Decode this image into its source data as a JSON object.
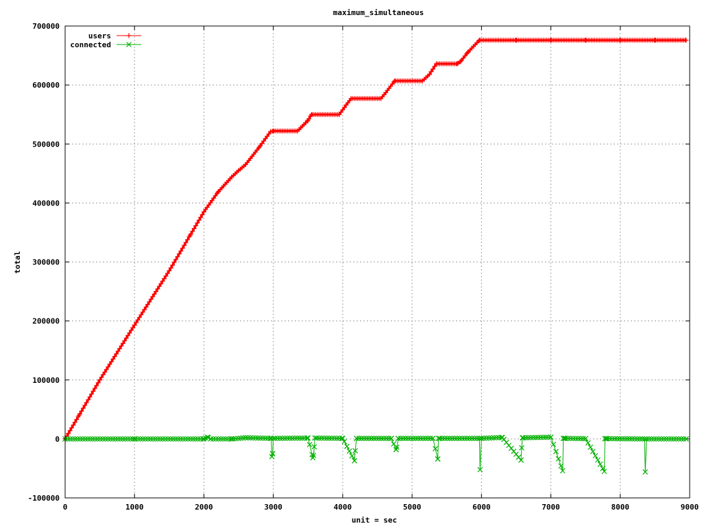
{
  "chart_data": {
    "type": "line",
    "title": "maximum_simultaneous",
    "xlabel": "unit = sec",
    "ylabel": "total",
    "xlim": [
      0,
      9000
    ],
    "ylim": [
      -100000,
      700000
    ],
    "x_ticks": [
      0,
      1000,
      2000,
      3000,
      4000,
      5000,
      6000,
      7000,
      8000,
      9000
    ],
    "y_ticks": [
      -100000,
      0,
      100000,
      200000,
      300000,
      400000,
      500000,
      600000,
      700000
    ],
    "grid": true,
    "legend_position": "top-left",
    "series": [
      {
        "name": "users",
        "color": "#ff0000",
        "marker": "plus",
        "x": [
          0,
          200,
          500,
          1000,
          1500,
          1800,
          2000,
          2200,
          2400,
          2500,
          2600,
          2800,
          2960,
          3000,
          3350,
          3500,
          3550,
          3950,
          4050,
          4120,
          4550,
          4620,
          4750,
          5150,
          5250,
          5350,
          5650,
          5700,
          5800,
          5970,
          6500,
          7000,
          7500,
          8000,
          8500,
          8950
        ],
        "y": [
          0,
          40000,
          100000,
          193000,
          285000,
          345000,
          385000,
          418000,
          444000,
          455000,
          465000,
          495000,
          521000,
          522000,
          522000,
          540000,
          550000,
          550000,
          566000,
          577000,
          577000,
          587000,
          607000,
          607000,
          618000,
          636000,
          636000,
          640000,
          655000,
          676000,
          676000,
          676000,
          676000,
          676000,
          676000,
          676000
        ]
      },
      {
        "name": "connected",
        "color": "#00b000",
        "marker": "cross",
        "x": [
          0,
          1000,
          2000,
          2050,
          2100,
          2400,
          2600,
          2970,
          2980,
          2990,
          3000,
          3500,
          3570,
          3580,
          3600,
          4000,
          4170,
          4180,
          4200,
          4700,
          4770,
          4780,
          4800,
          5300,
          5370,
          5380,
          5400,
          5970,
          5980,
          6000,
          6300,
          6570,
          6580,
          6590,
          6600,
          7000,
          7170,
          7180,
          7200,
          7500,
          7770,
          7780,
          7800,
          8350,
          8360,
          8380,
          8950
        ],
        "y": [
          0,
          0,
          0,
          3000,
          0,
          0,
          2000,
          1000,
          -30000,
          -25000,
          1000,
          1500,
          -32000,
          -28000,
          1500,
          1000,
          -37000,
          -20000,
          1000,
          1000,
          -18000,
          -14000,
          1000,
          1000,
          -34000,
          1000,
          1000,
          1000,
          -52000,
          1000,
          2500,
          -36000,
          -15000,
          2000,
          2000,
          3000,
          -54000,
          1000,
          1000,
          500,
          -55000,
          500,
          500,
          0,
          -56000,
          0,
          0
        ]
      }
    ]
  }
}
